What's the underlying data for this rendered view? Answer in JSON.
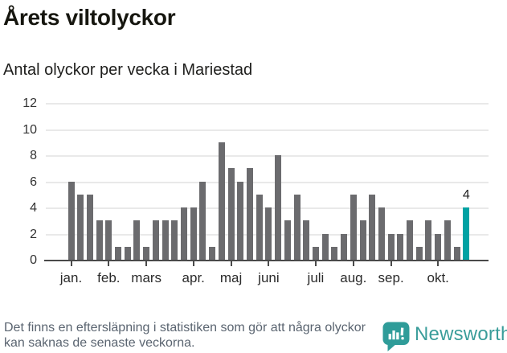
{
  "header": {
    "title": "Årets viltolyckor",
    "subtitle": "Antal olyckor per vecka i Mariestad"
  },
  "chart_data": {
    "type": "bar",
    "title": "Årets viltolyckor",
    "subtitle": "Antal olyckor per vecka i Mariestad",
    "x_unit": "week",
    "values": [
      6,
      5,
      5,
      3,
      3,
      1,
      1,
      3,
      1,
      3,
      3,
      3,
      4,
      4,
      6,
      1,
      9,
      7,
      6,
      7,
      5,
      4,
      8,
      3,
      5,
      3,
      1,
      2,
      1,
      2,
      5,
      3,
      5,
      4,
      2,
      2,
      3,
      1,
      3,
      2,
      3,
      1,
      4
    ],
    "highlight_last_bar": true,
    "last_bar_value_label": "4",
    "month_ticks": [
      {
        "label": "jan.",
        "week": 1
      },
      {
        "label": "feb.",
        "week": 5
      },
      {
        "label": "mars",
        "week": 9
      },
      {
        "label": "apr.",
        "week": 14
      },
      {
        "label": "maj",
        "week": 18
      },
      {
        "label": "juni",
        "week": 22
      },
      {
        "label": "juli",
        "week": 27
      },
      {
        "label": "aug.",
        "week": 31
      },
      {
        "label": "sep.",
        "week": 35
      },
      {
        "label": "okt.",
        "week": 40
      }
    ],
    "yticks": [
      0,
      2,
      4,
      6,
      8,
      10,
      12
    ],
    "ylim": [
      0,
      12
    ],
    "grid": true,
    "legend": "none",
    "colors": {
      "bar": "#6b6b6e",
      "highlight": "#00a2a3",
      "axis": "#4a4a4a",
      "gridline": "#e9e9e9"
    }
  },
  "footer": {
    "note": "Det finns en eftersläpning i statistiken som gör att några olyckor kan saknas de senaste veckorna.",
    "brand": "Newsworthy",
    "brand_color": "#3a9d9a",
    "brand_icon": "newsworthy-speech-bubble-barchart-icon"
  }
}
